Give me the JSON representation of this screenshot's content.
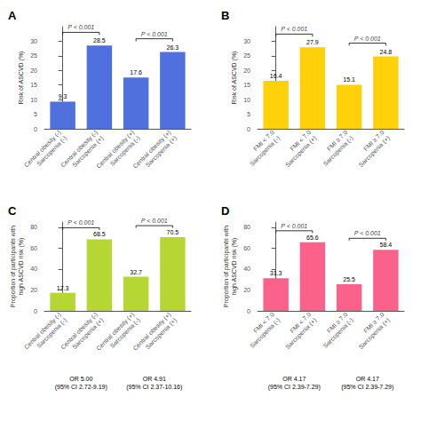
{
  "chart_data": [
    {
      "type": "bar",
      "title": "A",
      "categories": [
        "Central obesity (-)\nSarcopenia (-)",
        "Central obesity (-)\nSarcopenia (+)",
        "Central obesity (+)\nSarcopenia (-)",
        "Central obesity (+)\nSarcopenia (+)"
      ],
      "values": [
        9.3,
        28.5,
        17.6,
        26.3
      ],
      "ylabel": "Risk of ASCVD (%)",
      "ylim": [
        0,
        35
      ],
      "yticks": [
        0,
        5,
        10,
        15,
        20,
        25,
        30
      ],
      "grid": false,
      "data_labels": true,
      "annotations": [
        {
          "kind": "bracket",
          "between": [
            0,
            1
          ],
          "text": "P < 0.001"
        },
        {
          "kind": "bracket",
          "between": [
            2,
            3
          ],
          "text": "P < 0.001"
        }
      ]
    },
    {
      "type": "bar",
      "title": "B",
      "categories": [
        "FMI < 7.0\nSarcopenia (-)",
        "FMI < 7.0\nSarcopenia (+)",
        "FMI ≥ 7.0\nSarcopenia (-)",
        "FMI ≥ 7.0\nSarcopenia (+)"
      ],
      "values": [
        16.4,
        27.9,
        15.1,
        24.8
      ],
      "ylabel": "Risk of ASCVD (%)",
      "ylim": [
        0,
        35
      ],
      "yticks": [
        0,
        5,
        10,
        15,
        20,
        25,
        30
      ],
      "grid": false,
      "data_labels": true,
      "annotations": [
        {
          "kind": "bracket",
          "between": [
            0,
            1
          ],
          "text": "P < 0.001"
        },
        {
          "kind": "bracket",
          "between": [
            2,
            3
          ],
          "text": "P < 0.001"
        }
      ]
    },
    {
      "type": "bar",
      "title": "C",
      "categories": [
        "Central obesity (-)\nSarcopenia (-)",
        "Central obesity (-)\nSarcopenia (+)",
        "Central obesity (+)\nSarcopenia (-)",
        "Central obesity (+)\nSarcopenia (+)"
      ],
      "values": [
        17.3,
        68.5,
        32.7,
        70.5
      ],
      "ylabel": "Proportion of participants with\nhigh ASCVD risk (%)",
      "ylim": [
        0,
        85
      ],
      "yticks": [
        0,
        20,
        40,
        60,
        80
      ],
      "grid": false,
      "data_labels": true,
      "annotations": [
        {
          "kind": "bracket",
          "between": [
            0,
            1
          ],
          "text": "P < 0.001"
        },
        {
          "kind": "bracket",
          "between": [
            2,
            3
          ],
          "text": "P < 0.001"
        },
        {
          "kind": "note",
          "between": [
            0,
            1
          ],
          "text": "OR 5.00\n(95% CI 2.72-9.19)"
        },
        {
          "kind": "note",
          "between": [
            2,
            3
          ],
          "text": "OR 4.91\n(95% CI 2.37-10.16)"
        }
      ]
    },
    {
      "type": "bar",
      "title": "D",
      "categories": [
        "FMI < 7.0\nSarcopenia (-)",
        "FMI < 7.0\nSarcopenia (+)",
        "FMI ≥ 7.0\nSarcopenia (-)",
        "FMI ≥ 7.0\nSarcopenia (+)"
      ],
      "values": [
        31.3,
        65.6,
        25.5,
        58.4
      ],
      "ylabel": "Proportion of participants with\nhigh ASCVD risk (%)",
      "ylim": [
        0,
        85
      ],
      "yticks": [
        0,
        20,
        40,
        60,
        80
      ],
      "grid": false,
      "data_labels": true,
      "annotations": [
        {
          "kind": "bracket",
          "between": [
            0,
            1
          ],
          "text": "P < 0.001"
        },
        {
          "kind": "bracket",
          "between": [
            2,
            3
          ],
          "text": "P < 0.001"
        },
        {
          "kind": "note",
          "between": [
            0,
            1
          ],
          "text": "OR 4.17\n(95% CI 2.39-7.29)"
        },
        {
          "kind": "note",
          "between": [
            2,
            3
          ],
          "text": "OR 4.17\n(95% CI 2.39-7.29)"
        }
      ]
    }
  ]
}
